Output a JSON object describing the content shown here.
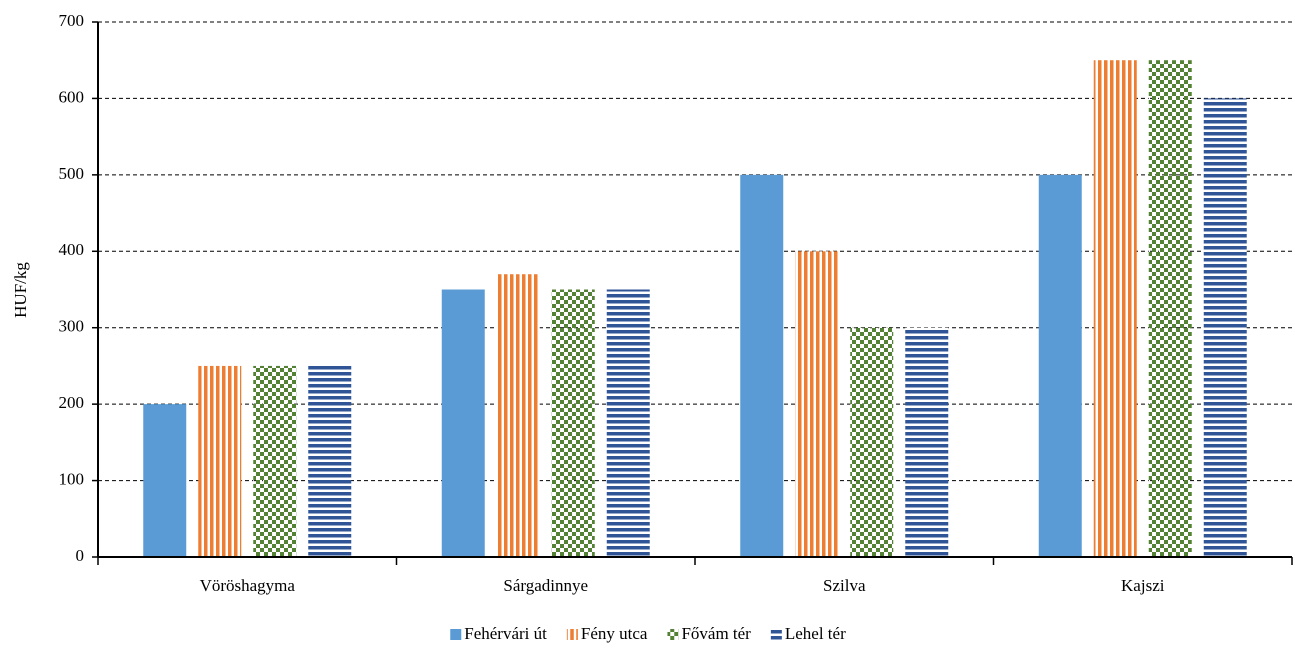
{
  "chart_data": {
    "type": "bar",
    "y_label": "HUF/kg",
    "categories": [
      "Vöröshagyma",
      "Sárgadinnye",
      "Szilva",
      "Kajszi"
    ],
    "series": [
      {
        "name": "Fehérvári út",
        "color": "#5b9bd5",
        "pattern": "solid",
        "values": [
          200,
          350,
          500,
          500
        ]
      },
      {
        "name": "Fény utca",
        "color": "#ed7d31",
        "pattern": "vertical",
        "values": [
          250,
          370,
          400,
          650
        ]
      },
      {
        "name": "Fővám tér",
        "color": "#548235",
        "pattern": "checker",
        "values": [
          250,
          350,
          300,
          650
        ]
      },
      {
        "name": "Lehel tér",
        "color": "#2f5597",
        "pattern": "horizontal",
        "values": [
          250,
          350,
          300,
          600
        ]
      }
    ],
    "ylim": [
      0,
      700
    ],
    "yticks": [
      0,
      100,
      200,
      300,
      400,
      500,
      600,
      700
    ],
    "grid": true,
    "legend": "bottom"
  }
}
